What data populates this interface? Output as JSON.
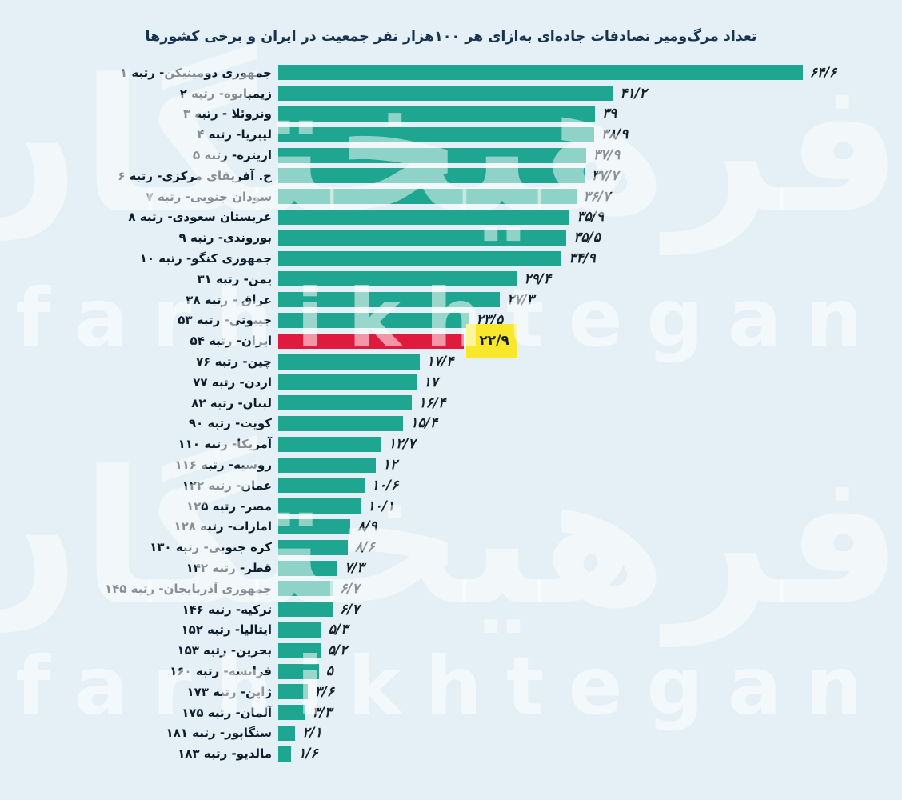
{
  "title": "تعداد مرگ‌ومیر تصادفات جاده‌ای به‌ازای هر ۱۰۰هزار نفر جمعیت در ایران و برخی کشورها",
  "watermark": {
    "persian": "فرهیختگان",
    "latin": "farhikhtegan"
  },
  "colors": {
    "background": "#e4f0f5",
    "bar": "#1ea690",
    "highlight_bar": "#df1a3d",
    "highlight_value_bg": "#f8e72a",
    "title_text": "#17334e",
    "value_text": "#15202b"
  },
  "chart_data": {
    "type": "bar",
    "orientation": "horizontal",
    "title": "تعداد مرگ‌ومیر تصادفات جاده‌ای به‌ازای هر ۱۰۰هزار نفر جمعیت در ایران و برخی کشورها",
    "xlabel": "",
    "ylabel": "",
    "xlim": [
      0,
      66
    ],
    "grid": false,
    "legend": false,
    "highlight_index": 13,
    "highlight_meaning": "ایران- رتبه ۵۴ (red bar, yellow value box)",
    "rows": [
      {
        "label": "جمهوری دومینیکن- رتبه ۱",
        "value": 64.6,
        "value_label": "۶۴/۶"
      },
      {
        "label": "زیمبابوه- رتبه ۲",
        "value": 41.2,
        "value_label": "۴۱/۲"
      },
      {
        "label": "ونزوئلا - رتبه ۳",
        "value": 39,
        "value_label": "۳۹"
      },
      {
        "label": "لیبریا- رتبه ۴",
        "value": 38.9,
        "value_label": "۳۸/۹"
      },
      {
        "label": "اریتره- رتبه ۵",
        "value": 37.9,
        "value_label": "۳۷/۹"
      },
      {
        "label": "ج. آفریقای مرکزی- رتبه ۶",
        "value": 37.7,
        "value_label": "۳۷/۷"
      },
      {
        "label": "سودان جنوبی- رتبه ۷",
        "value": 36.7,
        "value_label": "۳۶/۷"
      },
      {
        "label": "عربستان سعودی- رتبه ۸",
        "value": 35.9,
        "value_label": "۳۵/۹"
      },
      {
        "label": "بوروندی- رتبه ۹",
        "value": 35.5,
        "value_label": "۳۵/۵"
      },
      {
        "label": "جمهوری کنگو- رتبه ۱۰",
        "value": 34.9,
        "value_label": "۳۴/۹"
      },
      {
        "label": "یمن- رتبه ۳۱",
        "value": 29.4,
        "value_label": "۲۹/۴"
      },
      {
        "label": "عراق - رتبه ۳۸",
        "value": 27.3,
        "value_label": "۲۷/۳"
      },
      {
        "label": "جیبوتی- رتبه ۵۳",
        "value": 23.5,
        "value_label": "۲۳/۵"
      },
      {
        "label": "ایران- رتبه ۵۴",
        "value": 22.9,
        "value_label": "۲۲/۹"
      },
      {
        "label": "چین- رتبه ۷۶",
        "value": 17.4,
        "value_label": "۱۷/۴"
      },
      {
        "label": "اردن- رتبه ۷۷",
        "value": 17,
        "value_label": "۱۷"
      },
      {
        "label": "لبنان- رتبه ۸۲",
        "value": 16.4,
        "value_label": "۱۶/۴"
      },
      {
        "label": "کویت- رتبه ۹۰",
        "value": 15.4,
        "value_label": "۱۵/۴"
      },
      {
        "label": "آمریکا- رتبه ۱۱۰",
        "value": 12.7,
        "value_label": "۱۲/۷"
      },
      {
        "label": "روسیه- رتبه ۱۱۶",
        "value": 12,
        "value_label": "۱۲"
      },
      {
        "label": "عمان- رتبه ۱۲۲",
        "value": 10.6,
        "value_label": "۱۰/۶"
      },
      {
        "label": "مصر- رتبه ۱۲۵",
        "value": 10.1,
        "value_label": "۱۰/۱"
      },
      {
        "label": "امارات- رتبه ۱۲۸",
        "value": 8.9,
        "value_label": "۸/۹"
      },
      {
        "label": "کره جنوبی- رتبه ۱۳۰",
        "value": 8.6,
        "value_label": "۸/۶"
      },
      {
        "label": "قطر- رتبه ۱۴۲",
        "value": 7.3,
        "value_label": "۷/۳"
      },
      {
        "label": "جمهوری آذربایجان- رتبه ۱۴۵",
        "value": 6.7,
        "value_label": "۶/۷"
      },
      {
        "label": "ترکیه- رتبه ۱۴۶",
        "value": 6.7,
        "value_label": "۶/۷"
      },
      {
        "label": "ایتالیا- رتبه ۱۵۲",
        "value": 5.3,
        "value_label": "۵/۳"
      },
      {
        "label": "بحرین- رتبه ۱۵۳",
        "value": 5.2,
        "value_label": "۵/۲"
      },
      {
        "label": "فرانسه- رتبه ۱۶۰",
        "value": 5,
        "value_label": "۵"
      },
      {
        "label": "ژاپن- رتبه ۱۷۳",
        "value": 3.6,
        "value_label": "۳/۶"
      },
      {
        "label": "آلمان- رتبه ۱۷۵",
        "value": 3.3,
        "value_label": "۳/۳"
      },
      {
        "label": "سنگاپور- رتبه ۱۸۱",
        "value": 2.1,
        "value_label": "۲/۱"
      },
      {
        "label": "مالدیو- رتبه ۱۸۳",
        "value": 1.6,
        "value_label": "۱/۶"
      }
    ]
  }
}
